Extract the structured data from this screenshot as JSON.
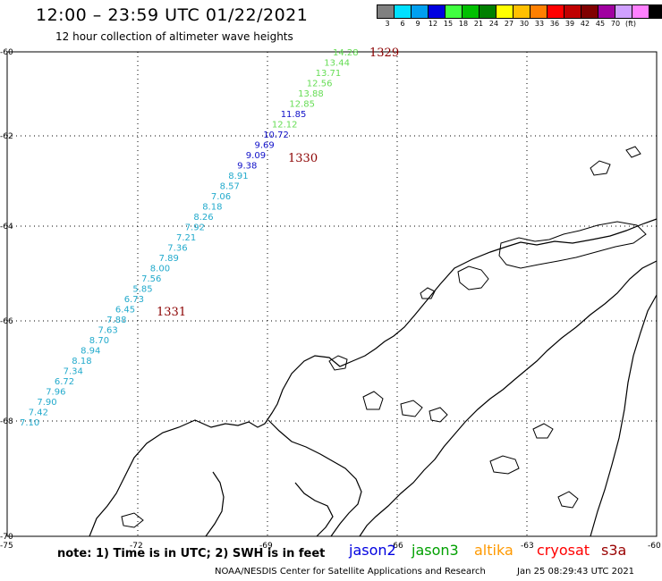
{
  "header": {
    "title": "12:00 – 23:59 UTC 01/22/2021",
    "subtitle": "12 hour collection of altimeter wave heights"
  },
  "legend": {
    "unit": "(ft)",
    "bins": [
      {
        "label": "3",
        "color": "#808080"
      },
      {
        "label": "6",
        "color": "#00e0ff"
      },
      {
        "label": "9",
        "color": "#00a0f0"
      },
      {
        "label": "12",
        "color": "#0000e0"
      },
      {
        "label": "15",
        "color": "#40ff40"
      },
      {
        "label": "18",
        "color": "#00c000"
      },
      {
        "label": "21",
        "color": "#008000"
      },
      {
        "label": "24",
        "color": "#ffff00"
      },
      {
        "label": "27",
        "color": "#ffc000"
      },
      {
        "label": "30",
        "color": "#ff8000"
      },
      {
        "label": "33",
        "color": "#ff0000"
      },
      {
        "label": "36",
        "color": "#c00000"
      },
      {
        "label": "39",
        "color": "#800000"
      },
      {
        "label": "42",
        "color": "#a000a0"
      },
      {
        "label": "45",
        "color": "#d0a0ff"
      },
      {
        "label": "70",
        "color": "#ff80ff"
      },
      {
        "label": "",
        "color": "#000000"
      }
    ]
  },
  "axes": {
    "lon_ticks": [
      "-75",
      "-72",
      "-69",
      "-66",
      "-63",
      "-60"
    ],
    "lat_ticks": [
      "-60",
      "-62",
      "-64",
      "-66",
      "-68",
      "-70"
    ]
  },
  "orbit_labels": [
    "1329",
    "1330",
    "1331"
  ],
  "track_colors": {
    "cyan": "#22aacc",
    "blue": "#1010c8",
    "green": "#66dd55"
  },
  "wave_heights": [
    {
      "value": "14.28",
      "c": "green"
    },
    {
      "value": "13.44",
      "c": "green"
    },
    {
      "value": "13.71",
      "c": "green"
    },
    {
      "value": "12.56",
      "c": "green"
    },
    {
      "value": "13.88",
      "c": "green"
    },
    {
      "value": "12.85",
      "c": "green"
    },
    {
      "value": "11.85",
      "c": "blue"
    },
    {
      "value": "12.12",
      "c": "green"
    },
    {
      "value": "10.72",
      "c": "blue"
    },
    {
      "value": "9.69",
      "c": "blue"
    },
    {
      "value": "9.09",
      "c": "blue"
    },
    {
      "value": "9.38",
      "c": "blue"
    },
    {
      "value": "8.91",
      "c": "cyan"
    },
    {
      "value": "8.57",
      "c": "cyan"
    },
    {
      "value": "7.06",
      "c": "cyan"
    },
    {
      "value": "8.18",
      "c": "cyan"
    },
    {
      "value": "8.26",
      "c": "cyan"
    },
    {
      "value": "7.92",
      "c": "cyan"
    },
    {
      "value": "7.21",
      "c": "cyan"
    },
    {
      "value": "7.36",
      "c": "cyan"
    },
    {
      "value": "7.89",
      "c": "cyan"
    },
    {
      "value": "8.00",
      "c": "cyan"
    },
    {
      "value": "7.56",
      "c": "cyan"
    },
    {
      "value": "5.85",
      "c": "cyan"
    },
    {
      "value": "6.73",
      "c": "cyan"
    },
    {
      "value": "6.45",
      "c": "cyan"
    },
    {
      "value": "7.88",
      "c": "cyan"
    },
    {
      "value": "7.63",
      "c": "cyan"
    },
    {
      "value": "8.70",
      "c": "cyan"
    },
    {
      "value": "8.94",
      "c": "cyan"
    },
    {
      "value": "8.18",
      "c": "cyan"
    },
    {
      "value": "7.34",
      "c": "cyan"
    },
    {
      "value": "6.72",
      "c": "cyan"
    },
    {
      "value": "7.96",
      "c": "cyan"
    },
    {
      "value": "7.90",
      "c": "cyan"
    },
    {
      "value": "7.42",
      "c": "cyan"
    },
    {
      "value": "7.10",
      "c": "cyan"
    }
  ],
  "footer": {
    "note": "note: 1) Time is in UTC; 2) SWH is in feet",
    "satellites": [
      {
        "name": "jason2",
        "color": "#0000e0"
      },
      {
        "name": "jason3",
        "color": "#00a000"
      },
      {
        "name": "altika",
        "color": "#ff9900"
      },
      {
        "name": "cryosat",
        "color": "#ff0000"
      },
      {
        "name": "s3a",
        "color": "#990000"
      }
    ],
    "credit": "NOAA/NESDIS Center for Satellite Applications and Research",
    "timestamp": "Jan 25 08:29:43 UTC 2021"
  }
}
